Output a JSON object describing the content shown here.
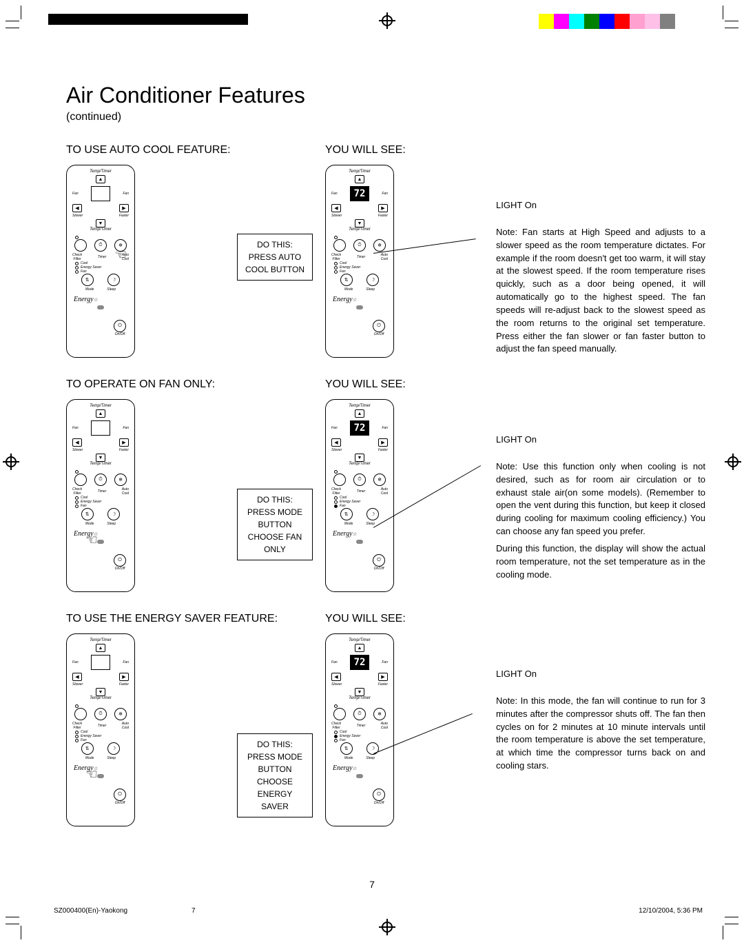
{
  "palette": [
    "#ffff00",
    "#ff00ff",
    "#00ffff",
    "#008000",
    "#0000ff",
    "#ff0000",
    "#ffa0d0",
    "#ffc0e8",
    "#808080"
  ],
  "title": "Air Conditioner Features",
  "continued": "(continued)",
  "page_number": "7",
  "footer": {
    "doc_id": "SZ000400(En)-Yaokong",
    "sheet": "7",
    "timestamp": "12/10/2004, 5:36 PM"
  },
  "temp_display": "72",
  "remote": {
    "temp_timer": "Temp/Timer",
    "fan": "Fan",
    "slower": "Slower",
    "faster": "Faster",
    "check_filter": "Check\nFilter",
    "timer": "Timer",
    "auto_cool": "Auto\nCool",
    "cool": "Cool",
    "energy_saver": "Energy Saver",
    "fan_mode": "Fan",
    "mode": "Mode",
    "sleep": "Sleep",
    "onoff": "On/Off",
    "energy": "Energy"
  },
  "sections": [
    {
      "left_heading": "TO USE AUTO COOL FEATURE:",
      "right_heading": "YOU WILL SEE:",
      "callout": "DO THIS:\nPRESS AUTO COOL BUTTON",
      "light": "LIGHT On",
      "note": "Note:  Fan starts at High Speed and adjusts to a slower speed as the room temperature dictates. For example if the room doesn't get too warm, it will stay at the slowest speed. If the room temperature rises quickly, such as a door being opened, it will automatically go to  the  highest speed. The fan speeds will re-adjust back to the slowest speed as the room returns to the original set temperature. Press either the fan slower or fan faster button to adjust the fan speed manually."
    },
    {
      "left_heading": "TO OPERATE ON FAN ONLY:",
      "right_heading": "YOU WILL SEE:",
      "callout": "DO THIS:\nPRESS MODE BUTTON\nCHOOSE FAN ONLY",
      "light": "LIGHT On",
      "note": "Note:  Use this function only when cooling is not desired, such as for room air circulation or to exhaust stale air(on some models). (Remember to open the vent during this function, but keep it closed during cooling for maximum cooling efficiency.) You can choose any fan speed you prefer.",
      "note2": "During this function, the display will show the actual room temperature, not the set temperature as in the cooling mode."
    },
    {
      "left_heading": "TO USE THE ENERGY SAVER FEATURE:",
      "right_heading": "YOU WILL SEE:",
      "callout": "DO THIS:\nPRESS MODE BUTTON\nCHOOSE ENERGY SAVER",
      "light": "LIGHT On",
      "note": "Note:  In this mode, the fan will continue to run for 3 minutes after the compressor shuts off. The fan then cycles on for 2 minutes at 10 minute intervals until the room temperature is above the set temperature, at which time the compressor turns back on and cooling stars."
    }
  ]
}
